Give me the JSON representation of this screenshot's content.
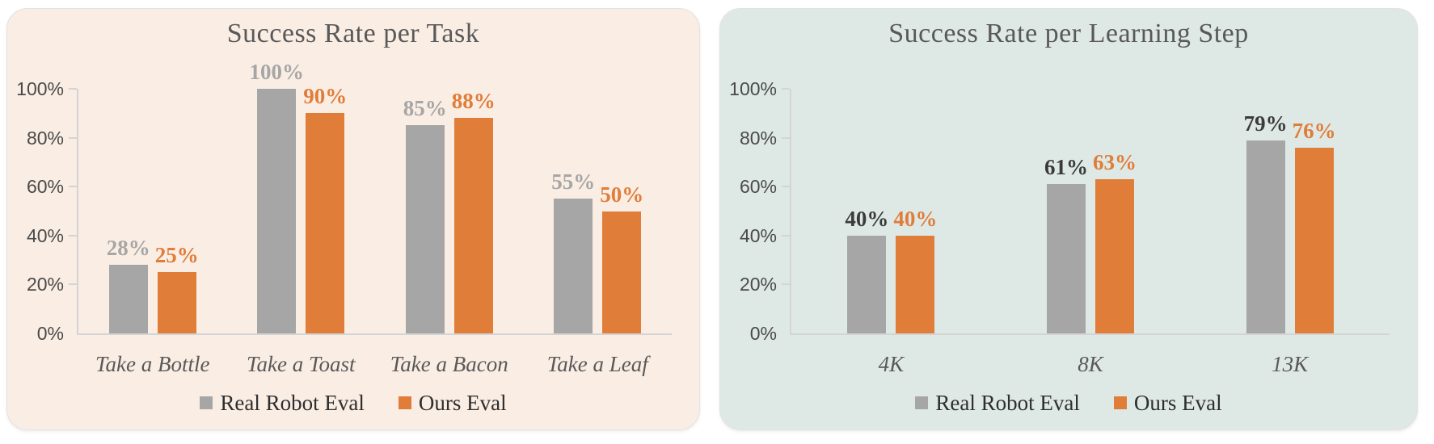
{
  "page": {
    "background": "#ffffff"
  },
  "chart_data": [
    {
      "type": "bar",
      "title": "Success Rate per Task",
      "panel_background": "#FAEDE4",
      "categories": [
        "Take a Bottle",
        "Take a Toast",
        "Take a Bacon",
        "Take a Leaf"
      ],
      "series": [
        {
          "name": "Real Robot Eval",
          "color": "#A6A6A6",
          "label_color": "#A6A6A6",
          "values": [
            28,
            100,
            85,
            55
          ],
          "data_labels": [
            "28%",
            "100%",
            "85%",
            "55%"
          ]
        },
        {
          "name": "Ours Eval",
          "color": "#E07D39",
          "label_color": "#E07D39",
          "values": [
            25,
            90,
            88,
            50
          ],
          "data_labels": [
            "25%",
            "90%",
            "88%",
            "50%"
          ]
        }
      ],
      "ylim": [
        0,
        100
      ],
      "y_ticks": [
        {
          "value": 100,
          "label": "100%"
        },
        {
          "value": 80,
          "label": "80%"
        },
        {
          "value": 60,
          "label": "60%"
        },
        {
          "value": 40,
          "label": "40%"
        },
        {
          "value": 20,
          "label": "20%"
        },
        {
          "value": 0,
          "label": "0%"
        }
      ],
      "grid": false,
      "legend_position": "bottom"
    },
    {
      "type": "bar",
      "title": "Success Rate per Learning Step",
      "panel_background": "#DEE9E6",
      "categories": [
        "4K",
        "8K",
        "13K"
      ],
      "series": [
        {
          "name": "Real Robot Eval",
          "color": "#A6A6A6",
          "label_color": "#3B3B3B",
          "values": [
            40,
            61,
            79
          ],
          "data_labels": [
            "40%",
            "61%",
            "79%"
          ]
        },
        {
          "name": "Ours Eval",
          "color": "#E07D39",
          "label_color": "#E07D39",
          "values": [
            40,
            63,
            76
          ],
          "data_labels": [
            "40%",
            "63%",
            "76%"
          ]
        }
      ],
      "ylim": [
        0,
        100
      ],
      "y_ticks": [
        {
          "value": 100,
          "label": "100%"
        },
        {
          "value": 80,
          "label": "80%"
        },
        {
          "value": 60,
          "label": "60%"
        },
        {
          "value": 40,
          "label": "40%"
        },
        {
          "value": 20,
          "label": "20%"
        },
        {
          "value": 0,
          "label": "0%"
        }
      ],
      "grid": false,
      "legend_position": "bottom"
    }
  ]
}
